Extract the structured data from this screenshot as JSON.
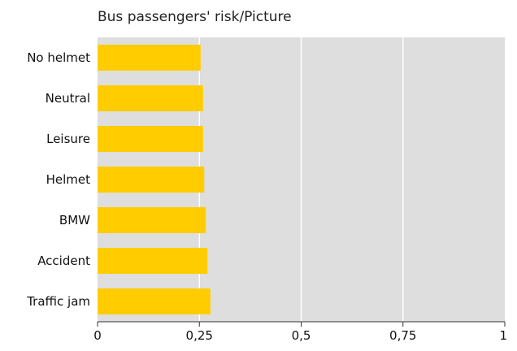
{
  "chart_data": {
    "type": "bar",
    "orientation": "horizontal",
    "title": "Bus passengers' risk/Picture",
    "xlabel": "",
    "ylabel": "",
    "categories": [
      "No helmet",
      "Neutral",
      "Leisure",
      "Helmet",
      "BMW",
      "Accident",
      "Traffic jam"
    ],
    "values": [
      0.253,
      0.259,
      0.259,
      0.262,
      0.266,
      0.27,
      0.277
    ],
    "xlim": [
      0,
      1
    ],
    "xticks": [
      0,
      0.25,
      0.5,
      0.75,
      1
    ],
    "xtick_labels": [
      "0",
      "0,25",
      "0,5",
      "0,75",
      "1"
    ],
    "grid": true,
    "colors": {
      "bar": "#FFCC00",
      "plot_background": "#DEDEDE",
      "gridline": "#FFFFFF"
    }
  }
}
